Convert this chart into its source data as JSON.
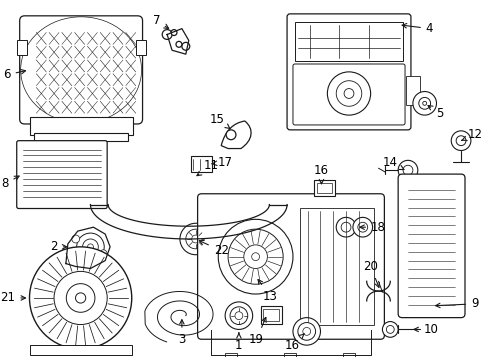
{
  "bg_color": "#ffffff",
  "lc": "#1a1a1a",
  "lw": 0.9,
  "figsize": [
    4.89,
    3.6
  ],
  "dpi": 100
}
